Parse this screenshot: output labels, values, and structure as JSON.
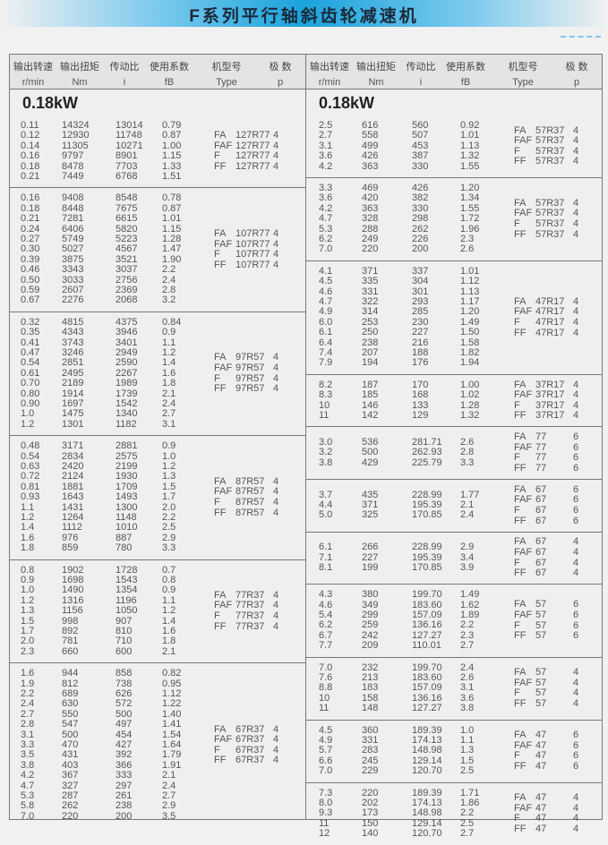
{
  "title": "F系列平行轴斜齿轮减速机",
  "headers": {
    "speed": {
      "cn": "输出转速",
      "unit": "r/min"
    },
    "torque": {
      "cn": "输出扭矩",
      "unit": "Nm"
    },
    "ratio": {
      "cn": "传动比",
      "unit": "i"
    },
    "factor": {
      "cn": "使用系数",
      "unit": "fB"
    },
    "type": {
      "cn": "机型号",
      "unit": "Type"
    },
    "pole": {
      "cn": "极  数",
      "unit": "p"
    }
  },
  "left": {
    "power": "0.18kW",
    "groups": [
      {
        "rows": [
          [
            "0.11",
            "14324",
            "13014",
            "0.79"
          ],
          [
            "0.12",
            "12930",
            "11748",
            "0.87"
          ],
          [
            "0.14",
            "11305",
            "10271",
            "1.00"
          ],
          [
            "0.16",
            "9797",
            "8901",
            "1.15"
          ],
          [
            "0.18",
            "8478",
            "7703",
            "1.33"
          ],
          [
            "0.21",
            "7449",
            "6768",
            "1.51"
          ]
        ],
        "types": [
          [
            "FA",
            "127R77"
          ],
          [
            "FAF",
            "127R77"
          ],
          [
            "F",
            "127R77"
          ],
          [
            "FF",
            "127R77"
          ]
        ],
        "pole": "4"
      },
      {
        "rows": [
          [
            "0.16",
            "9408",
            "8548",
            "0.78"
          ],
          [
            "0.18",
            "8448",
            "7675",
            "0.87"
          ],
          [
            "0.21",
            "7281",
            "6615",
            "1.01"
          ],
          [
            "0.24",
            "6406",
            "5820",
            "1.15"
          ],
          [
            "0.27",
            "5749",
            "5223",
            "1.28"
          ],
          [
            "0.30",
            "5027",
            "4567",
            "1.47"
          ],
          [
            "0.39",
            "3875",
            "3521",
            "1.90"
          ],
          [
            "0.46",
            "3343",
            "3037",
            "2.2"
          ],
          [
            "0.50",
            "3033",
            "2756",
            "2.4"
          ],
          [
            "0.59",
            "2607",
            "2369",
            "2.8"
          ],
          [
            "0.67",
            "2276",
            "2068",
            "3.2"
          ]
        ],
        "types": [
          [
            "FA",
            "107R77"
          ],
          [
            "FAF",
            "107R77"
          ],
          [
            "F",
            "107R77"
          ],
          [
            "FF",
            "107R77"
          ]
        ],
        "pole": "4"
      },
      {
        "rows": [
          [
            "0.32",
            "4815",
            "4375",
            "0.84"
          ],
          [
            "0.35",
            "4343",
            "3946",
            "0.9"
          ],
          [
            "0.41",
            "3743",
            "3401",
            "1.1"
          ],
          [
            "0.47",
            "3246",
            "2949",
            "1.2"
          ],
          [
            "0.54",
            "2851",
            "2590",
            "1.4"
          ],
          [
            "0.61",
            "2495",
            "2267",
            "1.6"
          ],
          [
            "0.70",
            "2189",
            "1989",
            "1.8"
          ],
          [
            "0.80",
            "1914",
            "1739",
            "2.1"
          ],
          [
            "0.90",
            "1697",
            "1542",
            "2.4"
          ],
          [
            "1.0",
            "1475",
            "1340",
            "2.7"
          ],
          [
            "1.2",
            "1301",
            "1182",
            "3.1"
          ]
        ],
        "types": [
          [
            "FA",
            "97R57"
          ],
          [
            "FAF",
            "97R57"
          ],
          [
            "F",
            "97R57"
          ],
          [
            "FF",
            "97R57"
          ]
        ],
        "pole": "4"
      },
      {
        "rows": [
          [
            "0.48",
            "3171",
            "2881",
            "0.9"
          ],
          [
            "0.54",
            "2834",
            "2575",
            "1.0"
          ],
          [
            "0.63",
            "2420",
            "2199",
            "1.2"
          ],
          [
            "0.72",
            "2124",
            "1930",
            "1.3"
          ],
          [
            "0.81",
            "1881",
            "1709",
            "1.5"
          ],
          [
            "0.93",
            "1643",
            "1493",
            "1.7"
          ],
          [
            "1.1",
            "1431",
            "1300",
            "2.0"
          ],
          [
            "1.2",
            "1264",
            "1148",
            "2.2"
          ],
          [
            "1.4",
            "1112",
            "1010",
            "2.5"
          ],
          [
            "1.6",
            "976",
            "887",
            "2.9"
          ],
          [
            "1.8",
            "859",
            "780",
            "3.3"
          ]
        ],
        "types": [
          [
            "FA",
            "87R57"
          ],
          [
            "FAF",
            "87R57"
          ],
          [
            "F",
            "87R57"
          ],
          [
            "FF",
            "87R57"
          ]
        ],
        "pole": "4"
      },
      {
        "rows": [
          [
            "0.8",
            "1902",
            "1728",
            "0.7"
          ],
          [
            "0.9",
            "1698",
            "1543",
            "0.8"
          ],
          [
            "1.0",
            "1490",
            "1354",
            "0.9"
          ],
          [
            "1.2",
            "1316",
            "1196",
            "1.1"
          ],
          [
            "1.3",
            "1156",
            "1050",
            "1.2"
          ],
          [
            "1.5",
            "998",
            "907",
            "1.4"
          ],
          [
            "1.7",
            "892",
            "810",
            "1.6"
          ],
          [
            "2.0",
            "781",
            "710",
            "1.8"
          ],
          [
            "2.3",
            "660",
            "600",
            "2.1"
          ]
        ],
        "types": [
          [
            "FA",
            "77R37"
          ],
          [
            "FAF",
            "77R37"
          ],
          [
            "F",
            "77R37"
          ],
          [
            "FF",
            "77R37"
          ]
        ],
        "pole": "4"
      },
      {
        "rows": [
          [
            "1.6",
            "944",
            "858",
            "0.82"
          ],
          [
            "1.9",
            "812",
            "738",
            "0.95"
          ],
          [
            "2.2",
            "689",
            "626",
            "1.12"
          ],
          [
            "2.4",
            "630",
            "572",
            "1.22"
          ],
          [
            "2.7",
            "550",
            "500",
            "1.40"
          ],
          [
            "2.8",
            "547",
            "497",
            "1.41"
          ],
          [
            "3.1",
            "500",
            "454",
            "1.54"
          ],
          [
            "3.3",
            "470",
            "427",
            "1.64"
          ],
          [
            "3.5",
            "431",
            "392",
            "1.79"
          ],
          [
            "3.8",
            "403",
            "366",
            "1.91"
          ],
          [
            "4.2",
            "367",
            "333",
            "2.1"
          ],
          [
            "4.7",
            "327",
            "297",
            "2.4"
          ],
          [
            "5.3",
            "287",
            "261",
            "2.7"
          ],
          [
            "5.8",
            "262",
            "238",
            "2.9"
          ],
          [
            "7.0",
            "220",
            "200",
            "3.5"
          ]
        ],
        "types": [
          [
            "FA",
            "67R37"
          ],
          [
            "FAF",
            "67R37"
          ],
          [
            "F",
            "67R37"
          ],
          [
            "FF",
            "67R37"
          ]
        ],
        "pole": "4"
      }
    ]
  },
  "right": {
    "power": "0.18kW",
    "groups": [
      {
        "rows": [
          [
            "2.5",
            "616",
            "560",
            "0.92"
          ],
          [
            "2.7",
            "558",
            "507",
            "1.01"
          ],
          [
            "3.1",
            "499",
            "453",
            "1.13"
          ],
          [
            "3.6",
            "426",
            "387",
            "1.32"
          ],
          [
            "4.2",
            "363",
            "330",
            "1.55"
          ]
        ],
        "types": [
          [
            "FA",
            "57R37"
          ],
          [
            "FAF",
            "57R37"
          ],
          [
            "F",
            "57R37"
          ],
          [
            "FF",
            "57R37"
          ]
        ],
        "pole": "4"
      },
      {
        "rows": [
          [
            "3.3",
            "469",
            "426",
            "1.20"
          ],
          [
            "3.6",
            "420",
            "382",
            "1.34"
          ],
          [
            "4.2",
            "363",
            "330",
            "1.55"
          ],
          [
            "4.7",
            "328",
            "298",
            "1.72"
          ],
          [
            "5.3",
            "288",
            "262",
            "1.96"
          ],
          [
            "6.2",
            "249",
            "226",
            "2.3"
          ],
          [
            "7.0",
            "220",
            "200",
            "2.6"
          ]
        ],
        "types": [
          [
            "FA",
            "57R37"
          ],
          [
            "FAF",
            "57R37"
          ],
          [
            "F",
            "57R37"
          ],
          [
            "FF",
            "57R37"
          ]
        ],
        "pole": "4"
      },
      {
        "rows": [
          [
            "4.1",
            "371",
            "337",
            "1.01"
          ],
          [
            "4.5",
            "335",
            "304",
            "1.12"
          ],
          [
            "4.6",
            "331",
            "301",
            "1.13"
          ],
          [
            "4.7",
            "322",
            "293",
            "1.17"
          ],
          [
            "4.9",
            "314",
            "285",
            "1.20"
          ],
          [
            "6.0",
            "253",
            "230",
            "1.49"
          ],
          [
            "6.1",
            "250",
            "227",
            "1.50"
          ],
          [
            "6.4",
            "238",
            "216",
            "1.58"
          ],
          [
            "7.4",
            "207",
            "188",
            "1.82"
          ],
          [
            "7.9",
            "194",
            "176",
            "1.94"
          ]
        ],
        "types": [
          [
            "FA",
            "47R17"
          ],
          [
            "FAF",
            "47R17"
          ],
          [
            "F",
            "47R17"
          ],
          [
            "FF",
            "47R17"
          ]
        ],
        "pole": "4"
      },
      {
        "rows": [
          [
            "8.2",
            "187",
            "170",
            "1.00"
          ],
          [
            "8.3",
            "185",
            "168",
            "1.02"
          ],
          [
            "10",
            "146",
            "133",
            "1.28"
          ],
          [
            "11",
            "142",
            "129",
            "1.32"
          ]
        ],
        "types": [
          [
            "FA",
            "37R17"
          ],
          [
            "FAF",
            "37R17"
          ],
          [
            "F",
            "37R17"
          ],
          [
            "FF",
            "37R17"
          ]
        ],
        "pole": "4"
      },
      {
        "rows": [
          [
            "3.0",
            "536",
            "281.71",
            "2.6"
          ],
          [
            "3.2",
            "500",
            "262.93",
            "2.8"
          ],
          [
            "3.8",
            "429",
            "225.79",
            "3.3"
          ]
        ],
        "types": [
          [
            "FA",
            "77"
          ],
          [
            "FAF",
            "77"
          ],
          [
            "F",
            "77"
          ],
          [
            "FF",
            "77"
          ]
        ],
        "pole": "6"
      },
      {
        "rows": [
          [
            "3.7",
            "435",
            "228.99",
            "1.77"
          ],
          [
            "4.4",
            "371",
            "195.39",
            "2.1"
          ],
          [
            "5.0",
            "325",
            "170.85",
            "2.4"
          ]
        ],
        "types": [
          [
            "FA",
            "67"
          ],
          [
            "FAF",
            "67"
          ],
          [
            "F",
            "67"
          ],
          [
            "FF",
            "67"
          ]
        ],
        "pole": "6"
      },
      {
        "rows": [
          [
            "6.1",
            "266",
            "228.99",
            "2.9"
          ],
          [
            "7.1",
            "227",
            "195.39",
            "3.4"
          ],
          [
            "8.1",
            "199",
            "170.85",
            "3.9"
          ]
        ],
        "types": [
          [
            "FA",
            "67"
          ],
          [
            "FAF",
            "67"
          ],
          [
            "F",
            "67"
          ],
          [
            "FF",
            "67"
          ]
        ],
        "pole": "4"
      },
      {
        "rows": [
          [
            "4.3",
            "380",
            "199.70",
            "1.49"
          ],
          [
            "4.6",
            "349",
            "183.60",
            "1.62"
          ],
          [
            "5.4",
            "299",
            "157.09",
            "1.89"
          ],
          [
            "6.2",
            "259",
            "136.16",
            "2.2"
          ],
          [
            "6.7",
            "242",
            "127.27",
            "2.3"
          ],
          [
            "7.7",
            "209",
            "110.01",
            "2.7"
          ]
        ],
        "types": [
          [
            "FA",
            "57"
          ],
          [
            "FAF",
            "57"
          ],
          [
            "F",
            "57"
          ],
          [
            "FF",
            "57"
          ]
        ],
        "pole": "6"
      },
      {
        "rows": [
          [
            "7.0",
            "232",
            "199.70",
            "2.4"
          ],
          [
            "7.6",
            "213",
            "183.60",
            "2.6"
          ],
          [
            "8.8",
            "183",
            "157.09",
            "3.1"
          ],
          [
            "10",
            "158",
            "136.16",
            "3.6"
          ],
          [
            "11",
            "148",
            "127.27",
            "3.8"
          ]
        ],
        "types": [
          [
            "FA",
            "57"
          ],
          [
            "FAF",
            "57"
          ],
          [
            "F",
            "57"
          ],
          [
            "FF",
            "57"
          ]
        ],
        "pole": "4"
      },
      {
        "rows": [
          [
            "4.5",
            "360",
            "189.39",
            "1.0"
          ],
          [
            "4.9",
            "331",
            "174.13",
            "1.1"
          ],
          [
            "5.7",
            "283",
            "148.98",
            "1.3"
          ],
          [
            "6.6",
            "245",
            "129.14",
            "1.5"
          ],
          [
            "7.0",
            "229",
            "120.70",
            "2.5"
          ]
        ],
        "types": [
          [
            "FA",
            "47"
          ],
          [
            "FAF",
            "47"
          ],
          [
            "F",
            "47"
          ],
          [
            "FF",
            "47"
          ]
        ],
        "pole": "6"
      },
      {
        "rows": [
          [
            "7.3",
            "220",
            "189.39",
            "1.71"
          ],
          [
            "8.0",
            "202",
            "174.13",
            "1.86"
          ],
          [
            "9.3",
            "173",
            "148.98",
            "2.2"
          ],
          [
            "11",
            "150",
            "129.14",
            "2.5"
          ],
          [
            "12",
            "140",
            "120.70",
            "2.7"
          ]
        ],
        "types": [
          [
            "FA",
            "47"
          ],
          [
            "FAF",
            "47"
          ],
          [
            "F",
            "47"
          ],
          [
            "FF",
            "47"
          ]
        ],
        "pole": "4"
      }
    ]
  }
}
